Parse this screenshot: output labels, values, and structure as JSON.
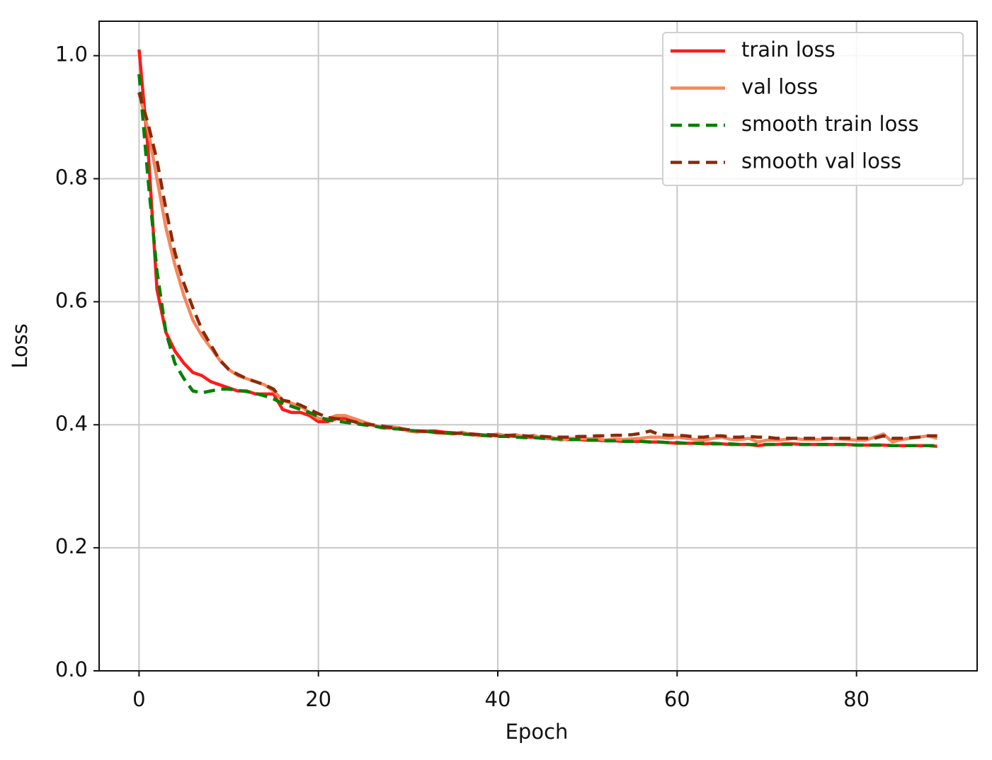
{
  "chart_data": {
    "type": "line",
    "xlabel": "Epoch",
    "ylabel": "Loss",
    "x": [
      0,
      1,
      2,
      3,
      4,
      5,
      6,
      7,
      8,
      9,
      10,
      11,
      12,
      13,
      14,
      15,
      16,
      17,
      18,
      19,
      20,
      21,
      22,
      23,
      24,
      25,
      26,
      27,
      28,
      29,
      30,
      31,
      32,
      33,
      34,
      35,
      36,
      37,
      38,
      39,
      40,
      41,
      42,
      43,
      44,
      45,
      46,
      47,
      48,
      49,
      50,
      51,
      52,
      53,
      54,
      55,
      56,
      57,
      58,
      59,
      60,
      61,
      62,
      63,
      64,
      65,
      66,
      67,
      68,
      69,
      70,
      71,
      72,
      73,
      74,
      75,
      76,
      77,
      78,
      79,
      80,
      81,
      82,
      83,
      84,
      85,
      86,
      87,
      88,
      89
    ],
    "series": [
      {
        "name": "train loss",
        "color": "#ff1a1a",
        "linestyle": "solid",
        "values": [
          1.01,
          0.85,
          0.62,
          0.55,
          0.52,
          0.5,
          0.485,
          0.48,
          0.47,
          0.465,
          0.46,
          0.455,
          0.455,
          0.45,
          0.45,
          0.45,
          0.425,
          0.42,
          0.42,
          0.415,
          0.405,
          0.405,
          0.41,
          0.41,
          0.405,
          0.4,
          0.4,
          0.395,
          0.395,
          0.395,
          0.39,
          0.39,
          0.39,
          0.39,
          0.388,
          0.387,
          0.386,
          0.385,
          0.384,
          0.383,
          0.382,
          0.382,
          0.381,
          0.38,
          0.38,
          0.378,
          0.378,
          0.377,
          0.376,
          0.376,
          0.375,
          0.375,
          0.374,
          0.374,
          0.373,
          0.373,
          0.373,
          0.372,
          0.372,
          0.371,
          0.37,
          0.37,
          0.37,
          0.369,
          0.37,
          0.369,
          0.368,
          0.368,
          0.368,
          0.366,
          0.368,
          0.368,
          0.369,
          0.369,
          0.368,
          0.368,
          0.368,
          0.368,
          0.368,
          0.368,
          0.367,
          0.367,
          0.367,
          0.367,
          0.366,
          0.366,
          0.366,
          0.366,
          0.366,
          0.365
        ]
      },
      {
        "name": "val loss",
        "color": "#f7865c",
        "linestyle": "solid",
        "values": [
          0.94,
          0.88,
          0.8,
          0.72,
          0.66,
          0.61,
          0.57,
          0.545,
          0.525,
          0.505,
          0.49,
          0.48,
          0.475,
          0.47,
          0.465,
          0.455,
          0.44,
          0.435,
          0.43,
          0.42,
          0.41,
          0.41,
          0.415,
          0.415,
          0.41,
          0.405,
          0.4,
          0.395,
          0.397,
          0.395,
          0.39,
          0.388,
          0.39,
          0.387,
          0.386,
          0.385,
          0.388,
          0.384,
          0.382,
          0.383,
          0.385,
          0.382,
          0.384,
          0.38,
          0.383,
          0.378,
          0.38,
          0.375,
          0.378,
          0.378,
          0.377,
          0.378,
          0.375,
          0.377,
          0.376,
          0.377,
          0.378,
          0.38,
          0.38,
          0.378,
          0.38,
          0.378,
          0.376,
          0.375,
          0.378,
          0.38,
          0.376,
          0.376,
          0.378,
          0.372,
          0.375,
          0.375,
          0.376,
          0.378,
          0.376,
          0.376,
          0.376,
          0.378,
          0.377,
          0.376,
          0.375,
          0.375,
          0.38,
          0.385,
          0.372,
          0.376,
          0.378,
          0.38,
          0.382,
          0.378
        ]
      },
      {
        "name": "smooth train loss",
        "color": "#008000",
        "linestyle": "dashed",
        "values": [
          0.97,
          0.8,
          0.65,
          0.55,
          0.5,
          0.475,
          0.455,
          0.452,
          0.455,
          0.458,
          0.458,
          0.456,
          0.454,
          0.451,
          0.447,
          0.442,
          0.435,
          0.43,
          0.425,
          0.42,
          0.413,
          0.408,
          0.406,
          0.404,
          0.402,
          0.4,
          0.398,
          0.396,
          0.394,
          0.393,
          0.391,
          0.39,
          0.389,
          0.388,
          0.387,
          0.386,
          0.385,
          0.384,
          0.383,
          0.382,
          0.381,
          0.381,
          0.38,
          0.379,
          0.379,
          0.378,
          0.377,
          0.377,
          0.376,
          0.376,
          0.375,
          0.375,
          0.374,
          0.374,
          0.373,
          0.373,
          0.373,
          0.372,
          0.372,
          0.371,
          0.371,
          0.37,
          0.37,
          0.37,
          0.369,
          0.369,
          0.369,
          0.368,
          0.368,
          0.368,
          0.368,
          0.368,
          0.368,
          0.368,
          0.368,
          0.368,
          0.368,
          0.368,
          0.368,
          0.368,
          0.367,
          0.367,
          0.367,
          0.367,
          0.366,
          0.366,
          0.366,
          0.366,
          0.366,
          0.366
        ]
      },
      {
        "name": "smooth val loss",
        "color": "#8b2a0a",
        "linestyle": "dashed",
        "values": [
          0.94,
          0.89,
          0.83,
          0.75,
          0.68,
          0.63,
          0.59,
          0.555,
          0.53,
          0.505,
          0.49,
          0.482,
          0.475,
          0.47,
          0.465,
          0.458,
          0.44,
          0.437,
          0.432,
          0.425,
          0.418,
          0.412,
          0.41,
          0.408,
          0.405,
          0.402,
          0.4,
          0.398,
          0.396,
          0.394,
          0.392,
          0.39,
          0.389,
          0.388,
          0.387,
          0.386,
          0.386,
          0.385,
          0.384,
          0.384,
          0.383,
          0.383,
          0.383,
          0.382,
          0.381,
          0.381,
          0.38,
          0.38,
          0.38,
          0.381,
          0.381,
          0.382,
          0.382,
          0.383,
          0.383,
          0.384,
          0.386,
          0.39,
          0.384,
          0.383,
          0.383,
          0.382,
          0.38,
          0.38,
          0.382,
          0.382,
          0.38,
          0.38,
          0.381,
          0.38,
          0.38,
          0.378,
          0.378,
          0.378,
          0.378,
          0.378,
          0.378,
          0.378,
          0.378,
          0.378,
          0.378,
          0.378,
          0.378,
          0.382,
          0.378,
          0.378,
          0.379,
          0.38,
          0.382,
          0.382
        ]
      }
    ],
    "xlim": [
      -4.45,
      93.45
    ],
    "xticks": [
      0,
      20,
      40,
      60,
      80
    ],
    "ylim": [
      0,
      1.056
    ],
    "yticks": [
      {
        "value": 0,
        "label": "0.0"
      },
      0.2,
      0.4,
      0.6,
      0.8,
      {
        "value": 1,
        "label": "1.0"
      }
    ],
    "grid": true,
    "legend": "upper right"
  }
}
